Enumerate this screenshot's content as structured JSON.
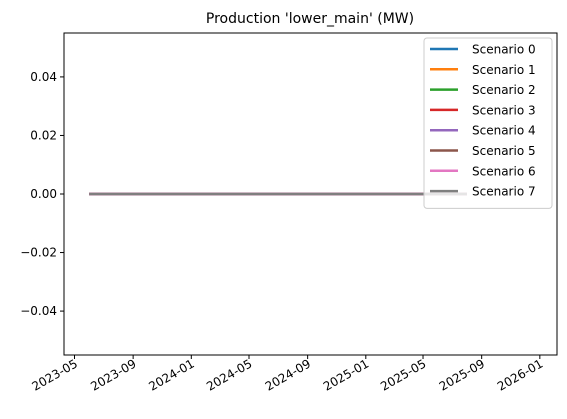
{
  "chart_data": {
    "type": "line",
    "title": "Production 'lower_main' (MW)",
    "xlabel": "",
    "ylabel": "",
    "x_start": "2023-06-01",
    "x_end": "2025-08-01",
    "x_range": [
      "2023-04-09",
      "2026-02-06"
    ],
    "ylim": [
      -0.055,
      0.055
    ],
    "x_ticks": [
      "2023-05",
      "2023-09",
      "2024-01",
      "2024-05",
      "2024-09",
      "2025-01",
      "2025-05",
      "2025-09",
      "2026-01"
    ],
    "y_ticks": [
      0.04,
      0.02,
      0.0,
      -0.02,
      -0.04
    ],
    "y_tick_labels": [
      "0.04",
      "0.02",
      "0.00",
      "−0.02",
      "−0.04"
    ],
    "grid": false,
    "legend_position": "upper-right",
    "series": [
      {
        "name": "Scenario 0",
        "color": "#1f77b4",
        "value": 0.0
      },
      {
        "name": "Scenario 1",
        "color": "#ff7f0e",
        "value": 0.0
      },
      {
        "name": "Scenario 2",
        "color": "#2ca02c",
        "value": 0.0
      },
      {
        "name": "Scenario 3",
        "color": "#d62728",
        "value": 0.0
      },
      {
        "name": "Scenario 4",
        "color": "#9467bd",
        "value": 0.0
      },
      {
        "name": "Scenario 5",
        "color": "#8c564b",
        "value": 0.0
      },
      {
        "name": "Scenario 6",
        "color": "#e377c2",
        "value": 0.0
      },
      {
        "name": "Scenario 7",
        "color": "#7f7f7f",
        "value": 0.0
      }
    ]
  }
}
